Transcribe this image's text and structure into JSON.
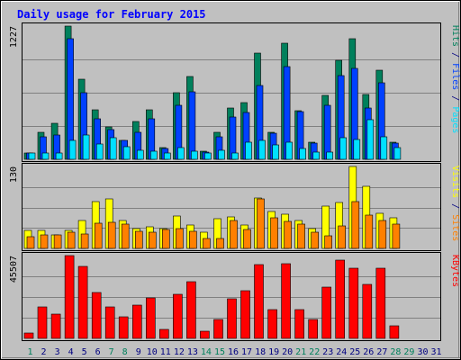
{
  "chart_data": {
    "type": "bar",
    "title": "Daily usage for February 2015",
    "colors": {
      "background": "#C0C0C0",
      "title": "#0000FF",
      "hits": "#00805C",
      "files": "#0040FF",
      "pages": "#00E0FF",
      "visits": "#FFFF00",
      "sites": "#FF8000",
      "kbytes": "#FF0000",
      "weekend_label": "#00805C",
      "weekday_label": "#000080"
    },
    "days": [
      "1",
      "2",
      "3",
      "4",
      "5",
      "6",
      "7",
      "8",
      "9",
      "10",
      "11",
      "12",
      "13",
      "14",
      "15",
      "16",
      "17",
      "18",
      "19",
      "20",
      "21",
      "22",
      "23",
      "24",
      "25",
      "26",
      "27",
      "28",
      "29",
      "30",
      "31"
    ],
    "weekend_days": [
      "1",
      "7",
      "8",
      "14",
      "15",
      "21",
      "22",
      "28",
      "29"
    ],
    "panels": [
      {
        "id": "top",
        "max_label": "1227",
        "ylim": [
          0,
          1227
        ],
        "side_labels": [
          {
            "text": "Hits",
            "color": "#00805C"
          },
          {
            "text": " / ",
            "color": "#000080"
          },
          {
            "text": "Files",
            "color": "#0040FF"
          },
          {
            "text": " / ",
            "color": "#000080"
          },
          {
            "text": "Pages",
            "color": "#00E0FF"
          }
        ],
        "series": [
          {
            "name": "Hits",
            "color": "#00805C",
            "values": [
              60,
              245,
              330,
              1227,
              735,
              460,
              300,
              175,
              350,
              460,
              110,
              610,
              760,
              75,
              245,
              470,
              520,
              975,
              250,
              1070,
              450,
              155,
              590,
              915,
              1115,
              595,
              820,
              155,
              0,
              0,
              0
            ]
          },
          {
            "name": "Files",
            "color": "#0040FF",
            "values": [
              55,
              210,
              225,
              1115,
              615,
              370,
              275,
              170,
              245,
              370,
              100,
              500,
              620,
              65,
              210,
              390,
              430,
              680,
              240,
              850,
              440,
              150,
              500,
              775,
              840,
              470,
              705,
              150,
              0,
              0,
              0
            ]
          },
          {
            "name": "Pages",
            "color": "#00E0FF",
            "values": [
              55,
              60,
              55,
              175,
              225,
              145,
              195,
              115,
              80,
              75,
              55,
              105,
              75,
              55,
              80,
              60,
              160,
              170,
              135,
              155,
              100,
              70,
              65,
              200,
              185,
              365,
              205,
              105,
              0,
              0,
              0
            ]
          }
        ]
      },
      {
        "id": "middle",
        "max_label": "130",
        "ylim": [
          0,
          130
        ],
        "side_labels": [
          {
            "text": "Visits",
            "color": "#FFFF00"
          },
          {
            "text": " / ",
            "color": "#000080"
          },
          {
            "text": "Sites",
            "color": "#FF8000"
          }
        ],
        "series": [
          {
            "name": "Visits",
            "color": "#FFFF00",
            "values": [
              28,
              28,
              21,
              28,
              44,
              74,
              78,
              44,
              31,
              34,
              31,
              52,
              37,
              26,
              47,
              50,
              37,
              80,
              58,
              54,
              44,
              31,
              67,
              73,
              130,
              98,
              56,
              48,
              0,
              0,
              0
            ]
          },
          {
            "name": "Sites",
            "color": "#FF8000",
            "values": [
              19,
              21,
              22,
              26,
              23,
              40,
              41,
              38,
              27,
              26,
              30,
              32,
              27,
              16,
              16,
              44,
              30,
              78,
              49,
              43,
              38,
              26,
              20,
              35,
              75,
              53,
              44,
              38,
              0,
              0,
              0
            ]
          }
        ]
      },
      {
        "id": "bottom",
        "max_label": "45507",
        "ylim": [
          0,
          45507
        ],
        "side_labels": [
          {
            "text": "KBytes",
            "color": "#FF0000"
          }
        ],
        "series": [
          {
            "name": "KBytes",
            "color": "#FF0000",
            "values": [
              3000,
              17500,
              13500,
              45507,
              39500,
              25000,
              17500,
              12000,
              18500,
              22500,
              5000,
              24000,
              31000,
              4000,
              10500,
              22000,
              26000,
              40500,
              16000,
              41000,
              16000,
              10500,
              28000,
              43000,
              38500,
              29500,
              38500,
              7000,
              0,
              0,
              0
            ]
          }
        ]
      }
    ]
  }
}
